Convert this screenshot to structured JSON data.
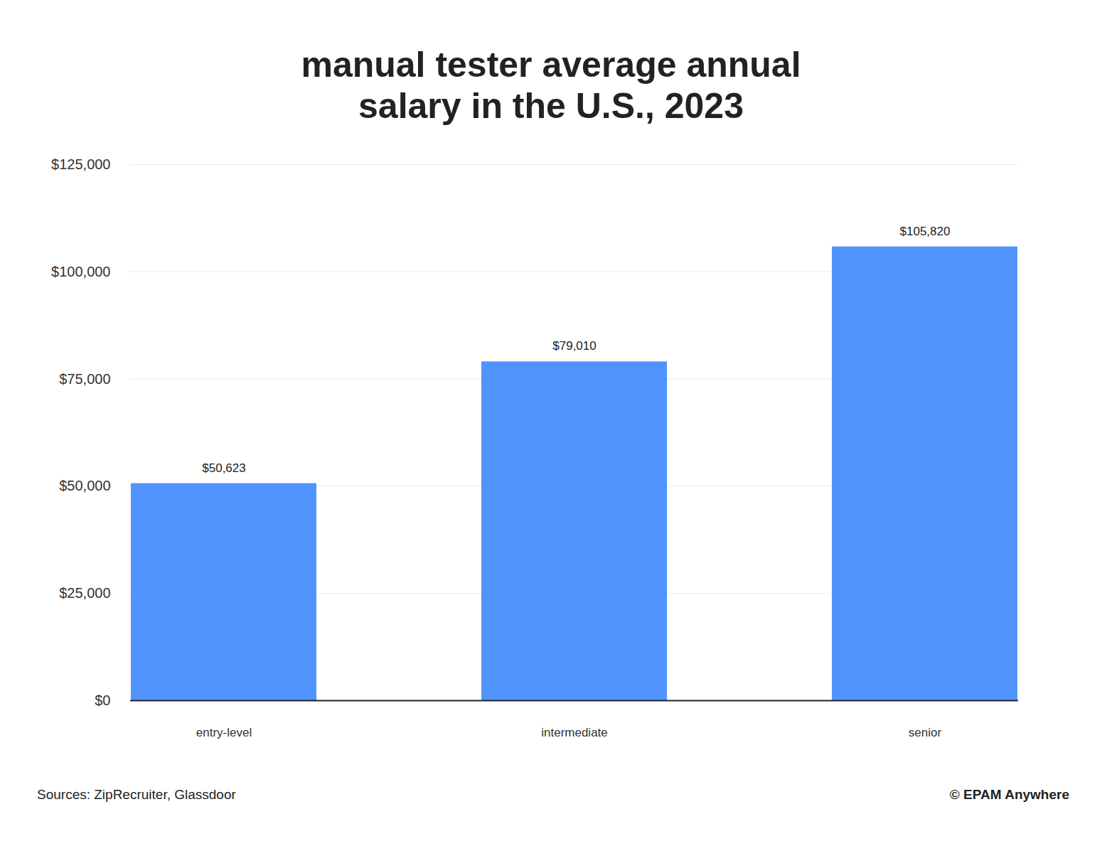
{
  "chart_data": {
    "type": "bar",
    "title": "manual tester average annual salary in the U.S., 2023",
    "categories": [
      "entry-level",
      "intermediate",
      "senior"
    ],
    "values": [
      50623,
      79010,
      105820
    ],
    "value_labels": [
      "$50,623",
      "$79,010",
      "$105,820"
    ],
    "data_labels": true,
    "color": "#5193fc",
    "ylim": [
      0,
      125000
    ],
    "yticks": [
      {
        "value": 0,
        "label": "$0"
      },
      {
        "value": 25000,
        "label": "$25,000"
      },
      {
        "value": 50000,
        "label": "$50,000"
      },
      {
        "value": 75000,
        "label": "$75,000"
      },
      {
        "value": 100000,
        "label": "$100,000"
      },
      {
        "value": 125000,
        "label": "$125,000"
      }
    ],
    "grid": true,
    "caption": "Sources: ZipRecruiter, Glassdoor",
    "credit": "© EPAM Anywhere"
  }
}
